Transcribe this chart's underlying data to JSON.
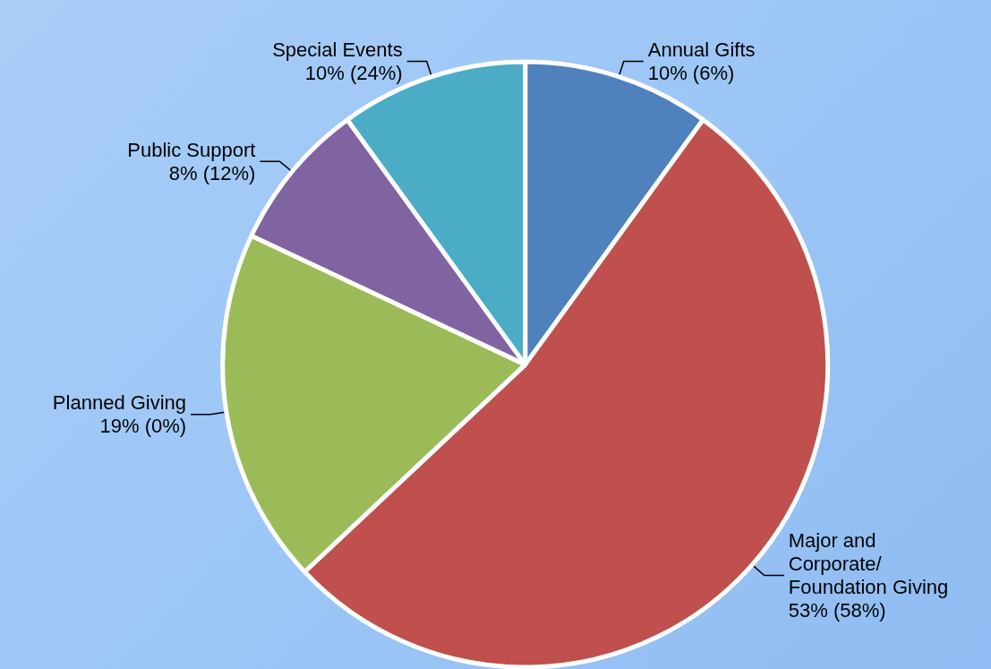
{
  "chart_data": {
    "type": "pie",
    "categories": [
      "Annual Gifts",
      "Major and Corporate/ Foundation Giving",
      "Planned Giving",
      "Public Support",
      "Special Events"
    ],
    "values": [
      10,
      53,
      19,
      8,
      10
    ],
    "value_labels": [
      "10% (6%)",
      "53% (58%)",
      "19% (0%)",
      "8% (12%)",
      "10% (24%)"
    ],
    "colors": [
      "#4f81bd",
      "#c0504d",
      "#9bbb59",
      "#8064a2",
      "#4bacc6"
    ],
    "legend": false
  }
}
